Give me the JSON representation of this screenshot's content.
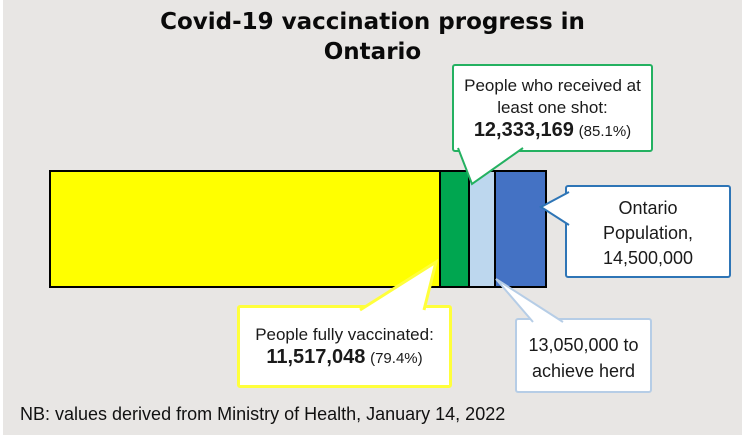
{
  "title": {
    "line1": "Covid-19 vaccination progress in",
    "line2": "Ontario"
  },
  "footnote": "NB: values derived from Ministry of Health, January 14, 2022",
  "callouts": {
    "one_shot": {
      "line1": "People who received at",
      "line2": "least one shot:",
      "value": "12,333,169",
      "pct": "(85.1%)",
      "border_color": "#24B161"
    },
    "fully": {
      "line1": "People fully vaccinated:",
      "value": "11,517,048",
      "pct": "(79.4%)",
      "border_color": "#FFFF3B"
    },
    "population": {
      "line1": "Ontario",
      "line2": "Population,",
      "line3": "14,500,000",
      "border_color": "#2E75B6"
    },
    "herd": {
      "line1": "13,050,000 to",
      "line2": "achieve herd",
      "border_color": "#B6CDE6"
    }
  },
  "chart_data": {
    "type": "bar",
    "orientation": "horizontal-stacked-proportional",
    "title": "Covid-19 vaccination progress in Ontario",
    "total_population": 14500000,
    "key_values": {
      "people_fully_vaccinated": 11517048,
      "people_fully_vaccinated_pct": 79.4,
      "people_at_least_one_shot": 12333169,
      "people_at_least_one_shot_pct": 85.1,
      "herd_immunity_threshold": 13050000,
      "ontario_population": 14500000,
      "source_note": "NB: values derived from Ministry of Health, January 14, 2022"
    },
    "segments": [
      {
        "name": "fully-vaccinated",
        "label": "People fully vaccinated: 11,517,048 (79.4%)",
        "value": 11517048,
        "color": "#FFFF00"
      },
      {
        "name": "additional-one-shot",
        "label": "Additional people with at least one shot (to 12,333,169 / 85.1%)",
        "value": 816121,
        "color": "#00A650"
      },
      {
        "name": "gap-to-herd",
        "label": "Remaining to reach 13,050,000 herd threshold",
        "value": 716831,
        "color": "#BDD7EE"
      },
      {
        "name": "rest-of-population",
        "label": "Rest of Ontario population (14,500,000 total)",
        "value": 1450000,
        "color": "#4472C4"
      }
    ],
    "legend": "none",
    "grid": false,
    "axes": "none (annotated callouts instead)"
  }
}
